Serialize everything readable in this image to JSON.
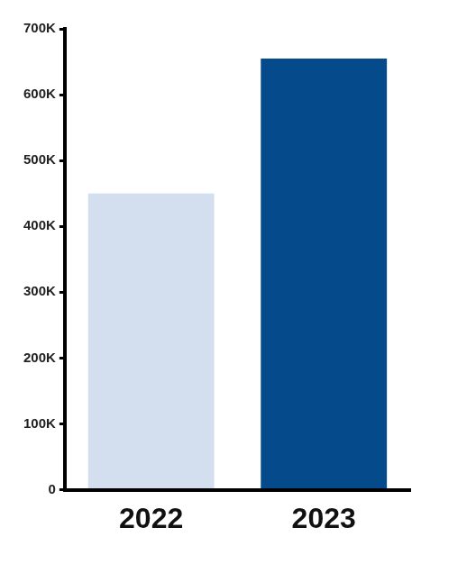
{
  "chart_data": {
    "type": "bar",
    "categories": [
      "2022",
      "2023"
    ],
    "values": [
      450000,
      655000
    ],
    "colors": [
      "#d3deee",
      "#054a8a"
    ],
    "ylim": [
      0,
      700000
    ],
    "yticks": [
      0,
      {
        "value": 100000,
        "label": "100K"
      },
      {
        "value": 200000,
        "label": "200K"
      },
      {
        "value": 300000,
        "label": "300K"
      },
      {
        "value": 400000,
        "label": "400K"
      },
      {
        "value": 500000,
        "label": "500K"
      },
      {
        "value": 600000,
        "label": "600K"
      },
      {
        "value": 700000,
        "label": "700K"
      }
    ],
    "grid": false
  }
}
